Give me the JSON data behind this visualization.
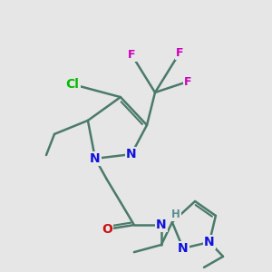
{
  "bg_color": "#e6e6e6",
  "bond_color": "#4a7a6a",
  "bond_width": 1.8,
  "atom_colors": {
    "N": "#1010dd",
    "O": "#cc1010",
    "Cl": "#00bb00",
    "F": "#cc00bb",
    "H": "#5a9090",
    "C": "#333333"
  },
  "font_size_atom": 10,
  "font_size_small": 8.5,
  "font_size_F": 9
}
